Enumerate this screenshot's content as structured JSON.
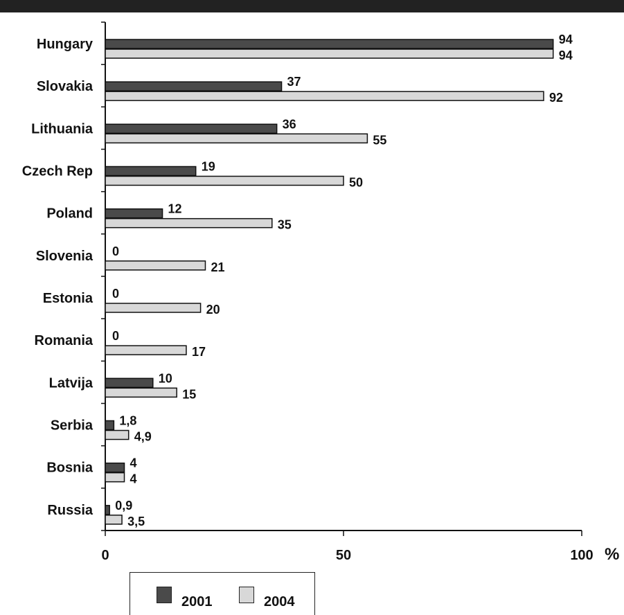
{
  "chart_data": {
    "type": "bar",
    "orientation": "horizontal",
    "categories": [
      "Hungary",
      "Slovakia",
      "Lithuania",
      "Czech Rep",
      "Poland",
      "Slovenia",
      "Estonia",
      "Romania",
      "Latvija",
      "Serbia",
      "Bosnia",
      "Russia"
    ],
    "series": [
      {
        "name": "2001",
        "color": "#4a4a4a",
        "values": [
          94,
          37,
          36,
          19,
          12,
          0,
          0,
          0,
          10,
          1.8,
          4,
          0.9
        ],
        "labels": [
          "94",
          "37",
          "36",
          "19",
          "12",
          "0",
          "0",
          "0",
          "10",
          "1,8",
          "4",
          "0,9"
        ]
      },
      {
        "name": "2004",
        "color": "#d8d8d8",
        "values": [
          94,
          92,
          55,
          50,
          35,
          21,
          20,
          17,
          15,
          4.9,
          4,
          3.5
        ],
        "labels": [
          "94",
          "92",
          "55",
          "50",
          "35",
          "21",
          "20",
          "17",
          "15",
          "4,9",
          "4",
          "3,5"
        ]
      }
    ],
    "xlim": [
      0,
      100
    ],
    "xticks": [
      "0",
      "50",
      "100"
    ],
    "xunit": "%",
    "legend_position": "bottom-left",
    "grid": false
  }
}
